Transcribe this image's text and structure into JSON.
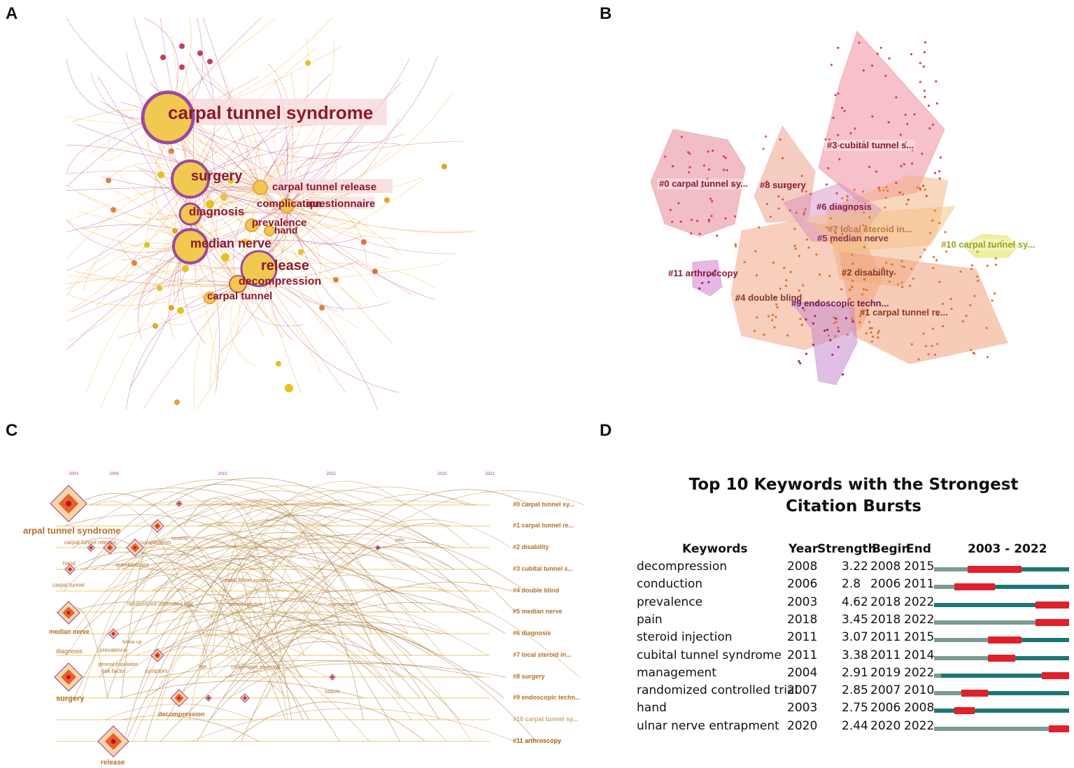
{
  "panels": {
    "a": {
      "letter": "A",
      "labels": [
        "carpal tunnel syndrome",
        "surgery",
        "carpal tunnel release",
        "complication",
        "questionnaire",
        "diagnosis",
        "prevalence",
        "hand",
        "median nerve",
        "release",
        "decompression",
        "carpal tunnel"
      ]
    },
    "b": {
      "letter": "B",
      "clusters": [
        "#3 cubital tunnel s...",
        "#0 carpal tunnel sy...",
        "#8 surgery",
        "#6 diagnosis",
        "#7 local steroid in...",
        "#5 median nerve",
        "#10 carpal tunnel sy...",
        "#11 arthroscopy",
        "#2 disability",
        "#4 double blind",
        "#9 endoscopic techn...",
        "#1 carpal tunnel re..."
      ]
    },
    "c": {
      "letter": "C",
      "years": [
        "2003",
        "2006",
        "2010",
        "2015",
        "2020",
        "2022"
      ],
      "cluster_labels": [
        "#0 carpal tunnel sy...",
        "#1 carpal tunnel re...",
        "#2 disability",
        "#3 cubital tunnel s...",
        "#4 double blind",
        "#5 median nerve",
        "#6 diagnosis",
        "#7 local steroid in...",
        "#8 surgery",
        "#9 endoscopic techn...",
        "#10 carpal tunnel sy...",
        "#11 arthroscopy"
      ],
      "node_labels": {
        "cts": "arpal tunnel syndrome",
        "ctr": "carpal tunnel release",
        "complication": "complication",
        "hand": "hand",
        "questionnaire": "questionnaire",
        "carpal_tunnel": "carpal tunnel",
        "rct": "randomized controlled trial",
        "steroid": "steroid injection",
        "median": "median nerve",
        "diagnosis": "diagnosis",
        "prevalence": "prevalence",
        "risk": "risk factor",
        "symptom": "symptom",
        "surgery": "surgery",
        "decompression": "decompression",
        "outcm": "outcm",
        "release": "release",
        "severity": "severity",
        "management": "management",
        "age": "age",
        "pain": "pain",
        "cubital": "cubital tunnel syndrome",
        "conservative": "conservative treatment",
        "followup": "follow up",
        "general": "general population"
      }
    },
    "d": {
      "letter": "D",
      "title_line1": "Top 10 Keywords with the Strongest",
      "title_line2": "Citation Bursts"
    }
  },
  "chart_data": {
    "type": "table",
    "title": "Top 10 Keywords with the Strongest Citation Bursts",
    "columns": [
      "Keywords",
      "Year",
      "Strength",
      "Begin",
      "End",
      "2003 - 2022"
    ],
    "range": [
      2003,
      2022
    ],
    "rows": [
      {
        "keyword": "decompression",
        "year": "2008",
        "strength": "3.22",
        "begin": "2008",
        "end": "2015"
      },
      {
        "keyword": "conduction",
        "year": "2006",
        "strength": "2.8",
        "begin": "2006",
        "end": "2011"
      },
      {
        "keyword": "prevalence",
        "year": "2003",
        "strength": "4.62",
        "begin": "2018",
        "end": "2022"
      },
      {
        "keyword": "pain",
        "year": "2018",
        "strength": "3.45",
        "begin": "2018",
        "end": "2022"
      },
      {
        "keyword": "steroid injection",
        "year": "2011",
        "strength": "3.07",
        "begin": "2011",
        "end": "2015"
      },
      {
        "keyword": "cubital tunnel syndrome",
        "year": "2011",
        "strength": "3.38",
        "begin": "2011",
        "end": "2014"
      },
      {
        "keyword": "management",
        "year": "2004",
        "strength": "2.91",
        "begin": "2019",
        "end": "2022"
      },
      {
        "keyword": "randomized controlled trial",
        "year": "2007",
        "strength": "2.85",
        "begin": "2007",
        "end": "2010"
      },
      {
        "keyword": "hand",
        "year": "2003",
        "strength": "2.75",
        "begin": "2006",
        "end": "2008"
      },
      {
        "keyword": "ulnar nerve entrapment",
        "year": "2020",
        "strength": "2.44",
        "begin": "2020",
        "end": "2022"
      }
    ]
  }
}
